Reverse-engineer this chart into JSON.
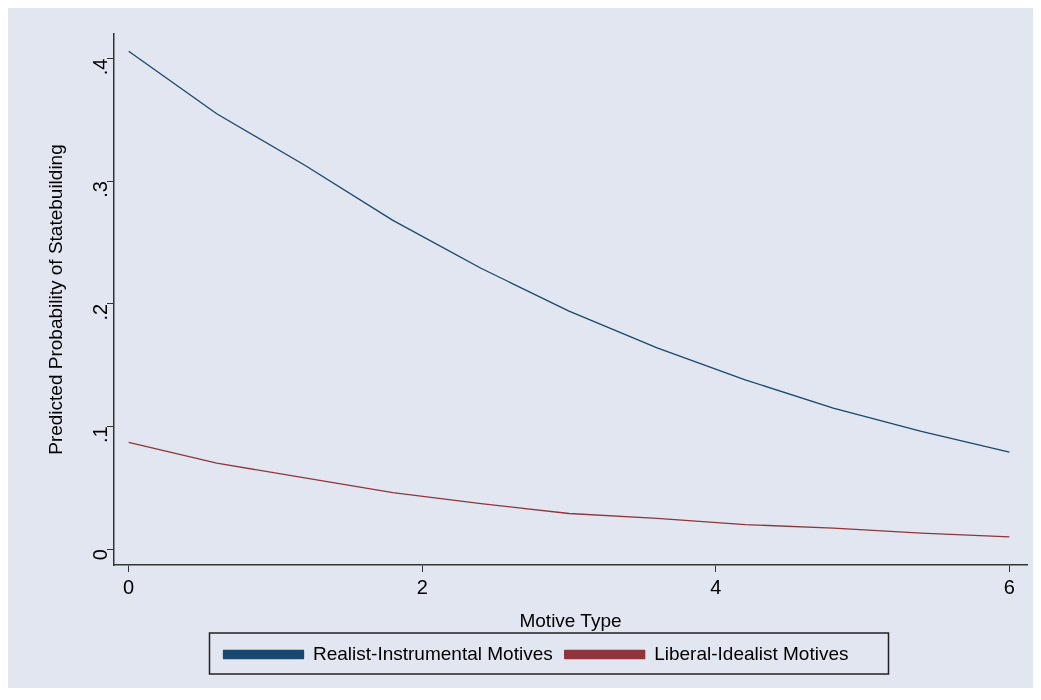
{
  "chart_data": {
    "type": "line",
    "xlabel": "Motive Type",
    "ylabel": "Predicted Probability of Statebuilding",
    "x": [
      0,
      0.6,
      1.2,
      1.8,
      2.4,
      3.0,
      3.6,
      4.2,
      4.8,
      5.4,
      6.0
    ],
    "series": [
      {
        "name": "Realist-Instrumental Motives",
        "color": "#1a476f",
        "values": [
          0.406,
          0.355,
          0.313,
          0.268,
          0.229,
          0.194,
          0.164,
          0.138,
          0.115,
          0.096,
          0.079
        ]
      },
      {
        "name": "Liberal-Idealist Motives",
        "color": "#90353b",
        "values": [
          0.087,
          0.07,
          0.058,
          0.046,
          0.037,
          0.029,
          0.025,
          0.02,
          0.017,
          0.013,
          0.01
        ]
      }
    ],
    "xlim": [
      -0.1,
      6.12
    ],
    "xticks": [
      0,
      2,
      4,
      6
    ],
    "ylim": [
      -0.013,
      0.42
    ],
    "yticks": [
      0,
      {
        "value": 0.1,
        "label": ".1"
      },
      {
        "value": 0.2,
        "label": ".2"
      },
      {
        "value": 0.3,
        "label": ".3"
      },
      {
        "value": 0.4,
        "label": ".4"
      }
    ],
    "grid": false,
    "legend": "bottom",
    "marker": "none",
    "line_style": "solid"
  }
}
